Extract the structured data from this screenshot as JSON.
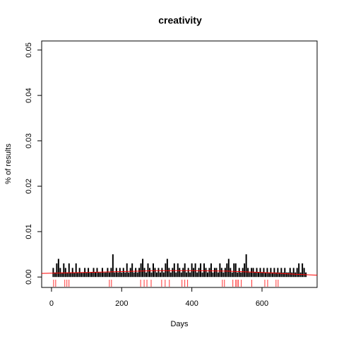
{
  "chart_data": {
    "type": "spike",
    "title": "creativity",
    "xlabel": "Days",
    "ylabel": "% of results",
    "xlim": [
      -28,
      757
    ],
    "ylim": [
      -0.0023,
      0.052
    ],
    "xticks": [
      0,
      200,
      400,
      600
    ],
    "yticks": [
      {
        "value": 0,
        "label": "0.00"
      },
      0.01,
      0.02,
      0.03,
      0.04,
      0.05
    ],
    "color": "#000000",
    "x": [
      5,
      10,
      15,
      20,
      25,
      30,
      35,
      40,
      45,
      50,
      55,
      60,
      65,
      70,
      75,
      80,
      85,
      90,
      95,
      100,
      105,
      110,
      115,
      120,
      125,
      130,
      135,
      140,
      145,
      150,
      155,
      160,
      165,
      170,
      175,
      180,
      185,
      190,
      195,
      200,
      205,
      210,
      215,
      220,
      225,
      230,
      235,
      240,
      245,
      250,
      255,
      260,
      265,
      270,
      275,
      280,
      285,
      290,
      295,
      300,
      305,
      310,
      315,
      320,
      325,
      330,
      335,
      340,
      345,
      350,
      355,
      360,
      365,
      370,
      375,
      380,
      385,
      390,
      395,
      400,
      405,
      410,
      415,
      420,
      425,
      430,
      435,
      440,
      445,
      450,
      455,
      460,
      465,
      470,
      475,
      480,
      485,
      490,
      495,
      500,
      505,
      510,
      515,
      520,
      525,
      530,
      535,
      540,
      545,
      550,
      555,
      560,
      565,
      570,
      575,
      580,
      585,
      590,
      595,
      600,
      605,
      610,
      615,
      620,
      625,
      630,
      635,
      640,
      645,
      650,
      655,
      660,
      665,
      670,
      675,
      680,
      685,
      690,
      695,
      700,
      705,
      710,
      715,
      720,
      725
    ],
    "values": [
      0.002,
      0.001,
      0.003,
      0.004,
      0.002,
      0.001,
      0.003,
      0.002,
      0.001,
      0.003,
      0.001,
      0.002,
      0.001,
      0.003,
      0.001,
      0.002,
      0.001,
      0.001,
      0.002,
      0.001,
      0.002,
      0.001,
      0.001,
      0.002,
      0.001,
      0.002,
      0.001,
      0.001,
      0.002,
      0.001,
      0.001,
      0.002,
      0.001,
      0.002,
      0.005,
      0.001,
      0.002,
      0.001,
      0.002,
      0.001,
      0.002,
      0.001,
      0.003,
      0.001,
      0.002,
      0.003,
      0.001,
      0.002,
      0.001,
      0.002,
      0.003,
      0.004,
      0.002,
      0.001,
      0.003,
      0.002,
      0.001,
      0.003,
      0.002,
      0.001,
      0.002,
      0.001,
      0.002,
      0.001,
      0.003,
      0.004,
      0.002,
      0.001,
      0.002,
      0.003,
      0.001,
      0.003,
      0.002,
      0.001,
      0.002,
      0.003,
      0.001,
      0.002,
      0.001,
      0.003,
      0.002,
      0.003,
      0.001,
      0.002,
      0.003,
      0.001,
      0.003,
      0.002,
      0.001,
      0.002,
      0.003,
      0.001,
      0.002,
      0.002,
      0.001,
      0.003,
      0.002,
      0.001,
      0.002,
      0.003,
      0.004,
      0.002,
      0.001,
      0.003,
      0.003,
      0.001,
      0.002,
      0.001,
      0.002,
      0.003,
      0.005,
      0.002,
      0.001,
      0.002,
      0.002,
      0.001,
      0.002,
      0.001,
      0.002,
      0.001,
      0.002,
      0.001,
      0.002,
      0.001,
      0.002,
      0.001,
      0.002,
      0.001,
      0.002,
      0.001,
      0.002,
      0.001,
      0.002,
      0.001,
      0.001,
      0.002,
      0.001,
      0.002,
      0.001,
      0.002,
      0.003,
      0.001,
      0.003,
      0.002,
      0.001
    ],
    "trend": {
      "color": "#ff0000",
      "x": [
        -28,
        100,
        200,
        300,
        400,
        500,
        600,
        700,
        757
      ],
      "values": [
        0.0008,
        0.001,
        0.0012,
        0.0014,
        0.0014,
        0.0013,
        0.001,
        0.0006,
        0.0004
      ]
    },
    "rug": {
      "color": "#ff0000",
      "x": [
        6,
        12,
        38,
        44,
        50,
        165,
        171,
        254,
        264,
        272,
        284,
        314,
        324,
        336,
        372,
        380,
        388,
        487,
        493,
        517,
        525,
        529,
        533,
        541,
        571,
        608,
        616,
        640,
        646
      ]
    }
  }
}
